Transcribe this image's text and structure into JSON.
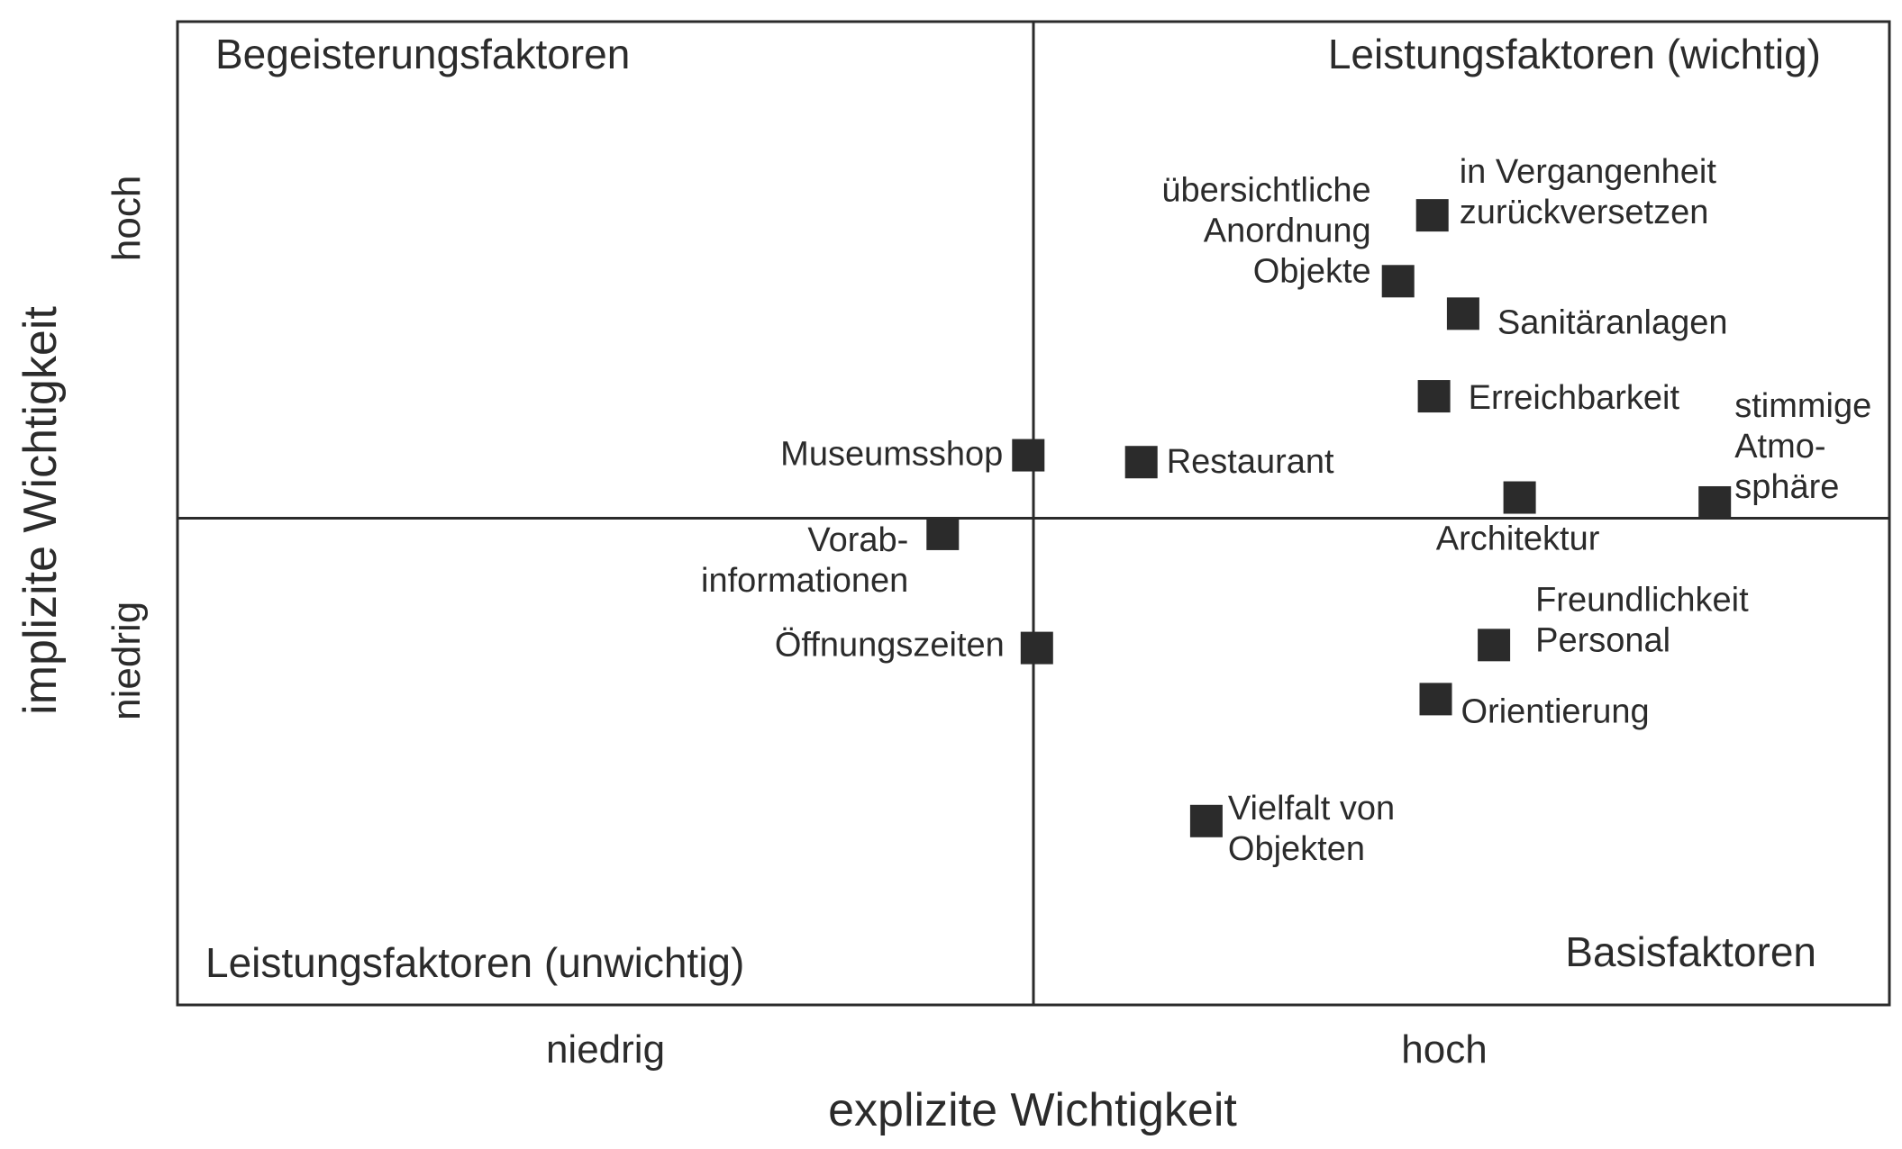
{
  "chart_data": {
    "type": "scatter",
    "title": "",
    "xlabel": "explizite Wichtigkeit",
    "ylabel": "implizite Wichtigkeit",
    "xlim": [
      0,
      100
    ],
    "ylim": [
      0,
      100
    ],
    "x_ticks": [
      {
        "value": 25,
        "label": "niedrig"
      },
      {
        "value": 74,
        "label": "hoch"
      }
    ],
    "y_ticks": [
      {
        "value": 80,
        "label": "hoch"
      },
      {
        "value": 35,
        "label": "niedrig"
      }
    ],
    "divider": {
      "x": 50,
      "y": 49.5
    },
    "quadrants": [
      {
        "id": "top-left",
        "label": "Begeisterungsfaktoren"
      },
      {
        "id": "top-right",
        "label": "Leistungsfaktoren (wichtig)"
      },
      {
        "id": "bottom-left",
        "label": "Leistungsfaktoren (unwichtig)"
      },
      {
        "id": "bottom-right",
        "label": "Basisfaktoren"
      }
    ],
    "points": [
      {
        "name": "in Vergangenheit zurückversetzen",
        "lines": [
          "in Vergangenheit",
          "zurückversetzen"
        ],
        "x": 73.3,
        "y": 80.3
      },
      {
        "name": "übersichtliche Anordnung Objekte",
        "lines": [
          "übersichtliche",
          "Anordnung",
          "Objekte"
        ],
        "x": 71.3,
        "y": 73.6
      },
      {
        "name": "Sanitäranlagen",
        "lines": [
          "Sanitäranlagen"
        ],
        "x": 75.1,
        "y": 70.3
      },
      {
        "name": "Erreichbarkeit",
        "lines": [
          "Erreichbarkeit"
        ],
        "x": 73.4,
        "y": 61.9
      },
      {
        "name": "Museumsshop",
        "lines": [
          "Museumsshop"
        ],
        "x": 49.7,
        "y": 55.9
      },
      {
        "name": "Restaurant",
        "lines": [
          "Restaurant"
        ],
        "x": 56.3,
        "y": 55.2
      },
      {
        "name": "Architektur",
        "lines": [
          "Architektur"
        ],
        "x": 78.4,
        "y": 51.6
      },
      {
        "name": "stimmige Atmosphäre",
        "lines": [
          "stimmige",
          "Atmo-",
          "sphäre"
        ],
        "x": 89.8,
        "y": 51.1
      },
      {
        "name": "Vorabinformationen",
        "lines": [
          "Vorab-",
          "informationen"
        ],
        "x": 44.7,
        "y": 47.9
      },
      {
        "name": "Öffnungszeiten",
        "lines": [
          "Öffnungszeiten"
        ],
        "x": 50.2,
        "y": 36.3
      },
      {
        "name": "Freundlichkeit Personal",
        "lines": [
          "Freundlichkeit",
          "Personal"
        ],
        "x": 76.9,
        "y": 36.6
      },
      {
        "name": "Orientierung",
        "lines": [
          "Orientierung"
        ],
        "x": 73.5,
        "y": 31.1
      },
      {
        "name": "Vielfalt von Objekten",
        "lines": [
          "Vielfalt von",
          "Objekten"
        ],
        "x": 60.1,
        "y": 18.7
      }
    ]
  }
}
